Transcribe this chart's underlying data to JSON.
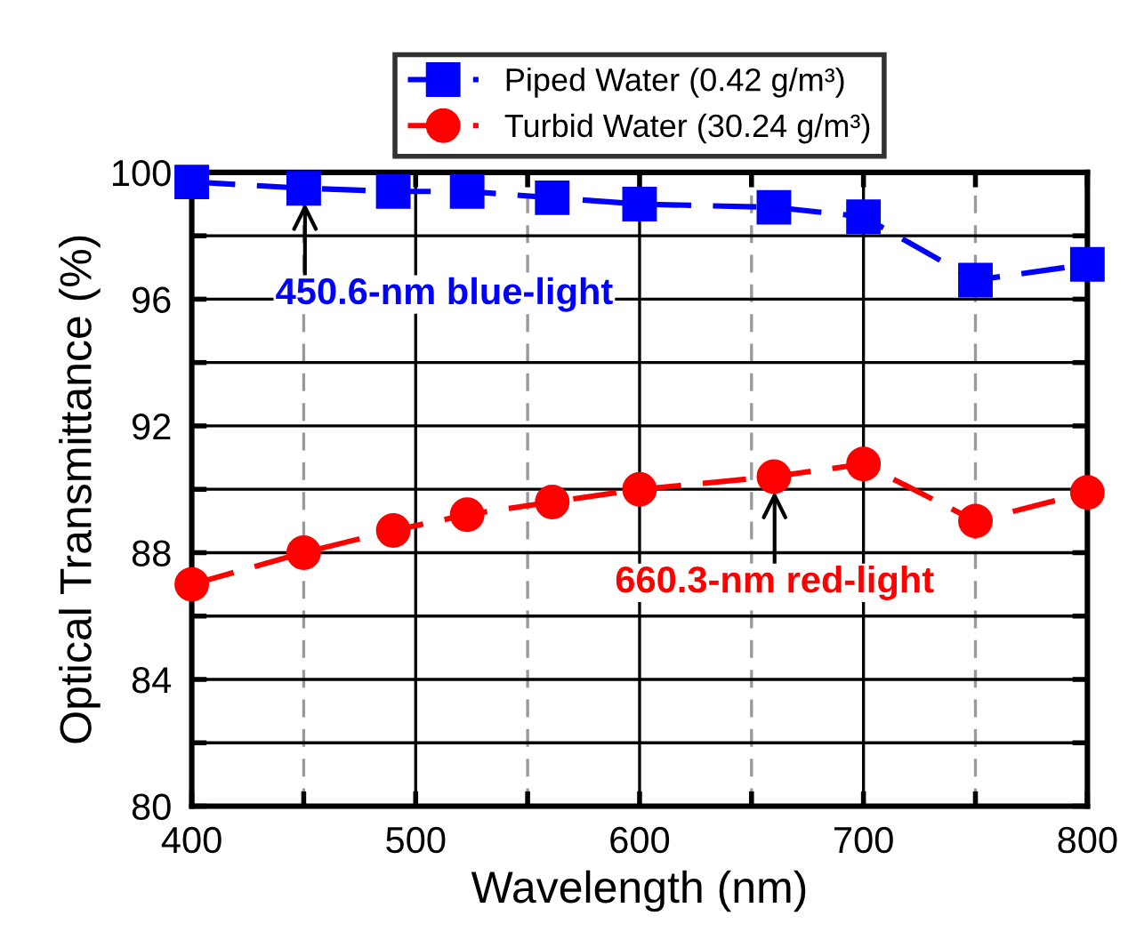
{
  "chart_data": {
    "type": "line",
    "xlabel": "Wavelength (nm)",
    "ylabel": "Optical Transmittance (%)",
    "x": [
      400,
      450,
      490,
      523,
      561,
      600,
      660,
      700,
      750,
      800
    ],
    "series": [
      {
        "name": "Piped Water (0.42 g/m³)",
        "color": "#0000ff",
        "marker": "square",
        "values": [
          99.7,
          99.5,
          99.4,
          99.4,
          99.2,
          99.0,
          98.9,
          98.6,
          96.6,
          97.1
        ]
      },
      {
        "name": "Turbid Water (30.24 g/m³)",
        "color": "#ff0000",
        "marker": "circle",
        "values": [
          87.0,
          88.0,
          88.7,
          89.2,
          89.6,
          90.0,
          90.4,
          90.8,
          89.0,
          89.9
        ]
      }
    ],
    "line_style": "dashed",
    "xlim": [
      400,
      800
    ],
    "xticks": [
      400,
      {
        "value": 450,
        "label": null
      },
      500,
      {
        "value": 550,
        "label": null
      },
      600,
      {
        "value": 650,
        "label": null
      },
      700,
      {
        "value": 750,
        "label": null
      },
      800
    ],
    "ylim": [
      80,
      100
    ],
    "yticks": [
      80,
      {
        "value": 82,
        "label": null
      },
      84,
      {
        "value": 86,
        "label": null
      },
      88,
      {
        "value": 90,
        "label": null
      },
      92,
      {
        "value": 94,
        "label": null
      },
      96,
      {
        "value": 98,
        "label": null
      },
      100
    ],
    "grid": true,
    "legend": "top",
    "annotations": [
      {
        "text": "450.6-nm blue-light",
        "x": 450.6,
        "y": 99.5
      },
      {
        "text": "660.3-nm red-light",
        "x": 660.3,
        "y": 90.4
      }
    ]
  }
}
